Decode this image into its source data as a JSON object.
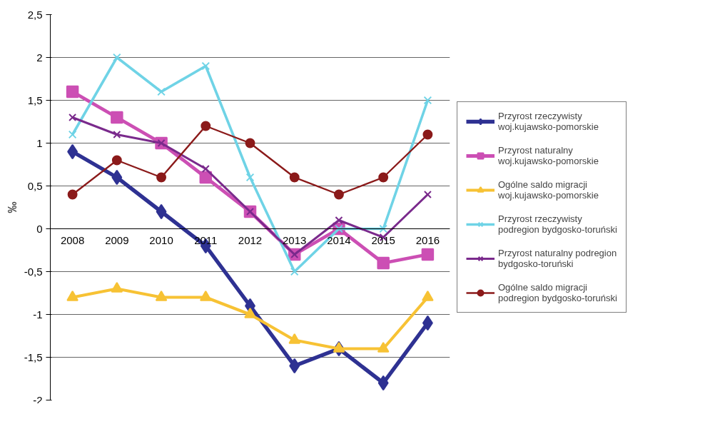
{
  "chart_data": {
    "type": "line",
    "ylabel": "‰",
    "categories": [
      "2008",
      "2009",
      "2010",
      "2011",
      "2012",
      "2013",
      "2014",
      "2015",
      "2016"
    ],
    "ylim": [
      -2,
      2.5
    ],
    "yticks": [
      {
        "value": -2,
        "label": "-2"
      },
      {
        "value": -1.5,
        "label": "-1,5"
      },
      {
        "value": -1,
        "label": "-1"
      },
      {
        "value": -0.5,
        "label": "-0,5"
      },
      {
        "value": 0,
        "label": "0"
      },
      {
        "value": 0.5,
        "label": "0,5"
      },
      {
        "value": 1,
        "label": "1"
      },
      {
        "value": 1.5,
        "label": "1,5"
      },
      {
        "value": 2,
        "label": "2"
      },
      {
        "value": 2.5,
        "label": "2,5"
      }
    ],
    "grid": "y",
    "legend": "right",
    "line_style": "solid",
    "series": [
      {
        "name": "Przyrost rzeczywisty woj.kujawsko-pomorskie",
        "color": "#2e3192",
        "marker": "diamond",
        "values": [
          0.9,
          0.6,
          0.2,
          -0.2,
          -0.9,
          -1.6,
          -1.4,
          -1.8,
          -1.1
        ]
      },
      {
        "name": "Przyrost naturalny woj.kujawsko-pomorskie",
        "color": "#cc4fb4",
        "marker": "square",
        "values": [
          1.6,
          1.3,
          1.0,
          0.6,
          0.2,
          -0.3,
          0.0,
          -0.4,
          -0.3
        ]
      },
      {
        "name": "Ogólne saldo migracji woj.kujawsko-pomorskie",
        "color": "#f7c234",
        "marker": "triangle",
        "values": [
          -0.8,
          -0.7,
          -0.8,
          -0.8,
          -1.0,
          -1.3,
          -1.4,
          -1.4,
          -0.8
        ]
      },
      {
        "name": "Przyrost rzeczywisty podregion bydgosko-toruński",
        "color": "#6fd3e6",
        "marker": "cross",
        "values": [
          1.1,
          2.0,
          1.6,
          1.9,
          0.6,
          -0.5,
          0.0,
          0.0,
          1.5
        ]
      },
      {
        "name": "Przyrost naturalny podregion bydgosko-toruński",
        "color": "#7a2a8c",
        "marker": "cross",
        "values": [
          1.3,
          1.1,
          1.0,
          0.7,
          0.2,
          -0.3,
          0.1,
          -0.1,
          0.4
        ]
      },
      {
        "name": "Ogólne saldo migracji podregion bydgosko-toruński",
        "color": "#8b1a1a",
        "marker": "circle",
        "values": [
          0.4,
          0.8,
          0.6,
          1.2,
          1.0,
          0.6,
          0.4,
          0.6,
          1.1
        ]
      }
    ]
  }
}
